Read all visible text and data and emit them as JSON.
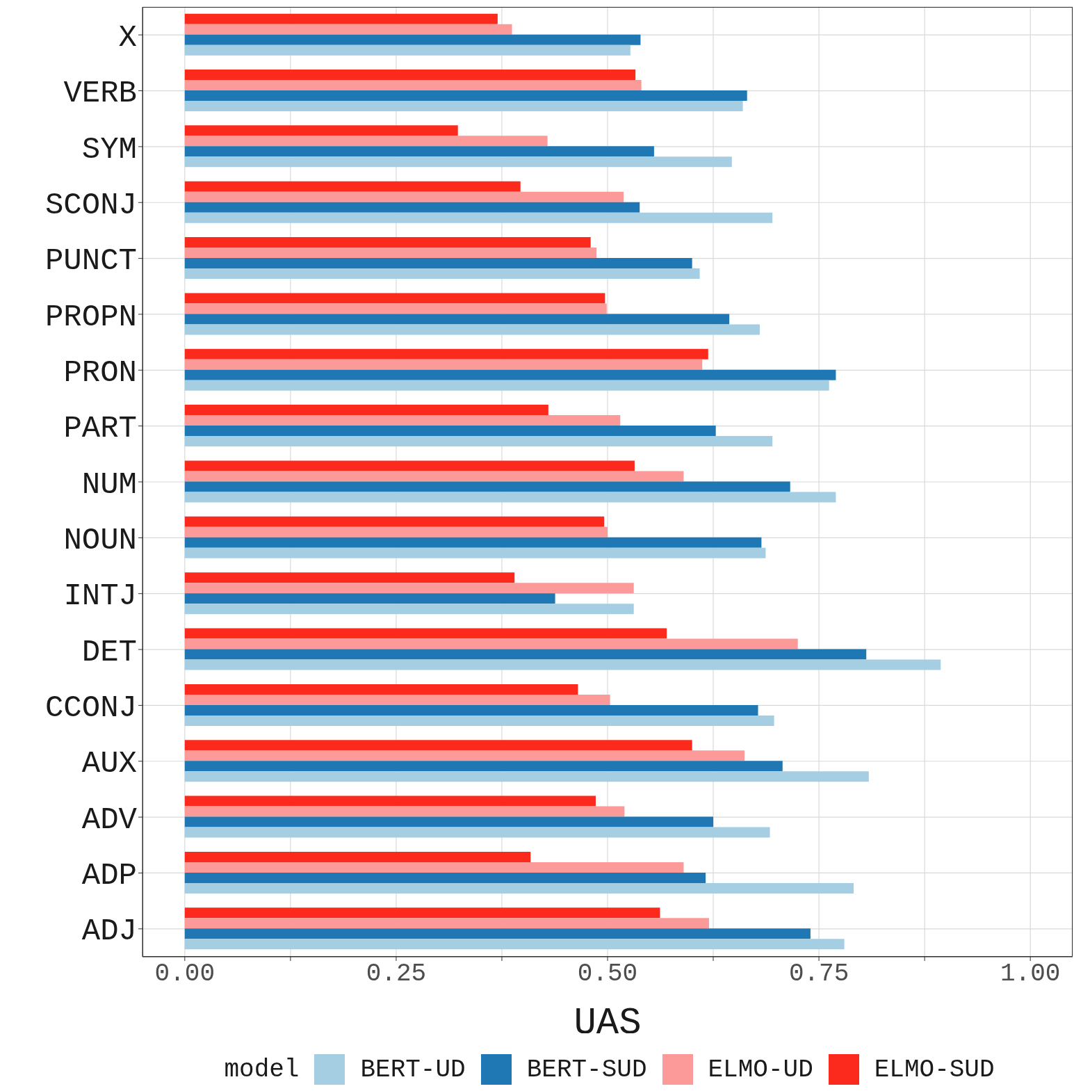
{
  "chart_data": {
    "type": "bar",
    "orientation": "horizontal",
    "xlabel": "UAS",
    "legend_title": "model",
    "legend": "bottom",
    "grid": true,
    "categories": [
      "X",
      "VERB",
      "SYM",
      "SCONJ",
      "PUNCT",
      "PROPN",
      "PRON",
      "PART",
      "NUM",
      "NOUN",
      "INTJ",
      "DET",
      "CCONJ",
      "AUX",
      "ADV",
      "ADP",
      "ADJ"
    ],
    "series": [
      {
        "name": "BERT-UD",
        "color": "#a6cee3",
        "values": [
          0.527,
          0.66,
          0.647,
          0.695,
          0.609,
          0.68,
          0.762,
          0.695,
          0.77,
          0.687,
          0.531,
          0.894,
          0.697,
          0.809,
          0.692,
          0.791,
          0.78
        ]
      },
      {
        "name": "BERT-SUD",
        "color": "#1f78b4",
        "values": [
          0.539,
          0.665,
          0.555,
          0.538,
          0.6,
          0.644,
          0.77,
          0.628,
          0.716,
          0.682,
          0.438,
          0.806,
          0.678,
          0.707,
          0.625,
          0.616,
          0.74
        ]
      },
      {
        "name": "ELMO-UD",
        "color": "#fb9a99",
        "values": [
          0.387,
          0.54,
          0.429,
          0.519,
          0.487,
          0.499,
          0.612,
          0.515,
          0.59,
          0.5,
          0.531,
          0.725,
          0.503,
          0.662,
          0.52,
          0.59,
          0.62
        ]
      },
      {
        "name": "ELMO-SUD",
        "color": "#fb2a1c",
        "values": [
          0.37,
          0.533,
          0.323,
          0.397,
          0.48,
          0.497,
          0.619,
          0.43,
          0.532,
          0.496,
          0.39,
          0.57,
          0.465,
          0.6,
          0.486,
          0.409,
          0.562
        ]
      }
    ],
    "xlim": [
      -0.05,
      1.05
    ],
    "xticks": [
      {
        "value": 0,
        "label": "0.00"
      },
      {
        "value": 0.125,
        "label": null
      },
      {
        "value": 0.25,
        "label": "0.25"
      },
      {
        "value": 0.375,
        "label": null
      },
      {
        "value": 0.5,
        "label": "0.50"
      },
      {
        "value": 0.625,
        "label": null
      },
      {
        "value": 0.75,
        "label": "0.75"
      },
      {
        "value": 0.875,
        "label": null
      },
      {
        "value": 1,
        "label": "1.00"
      }
    ]
  }
}
